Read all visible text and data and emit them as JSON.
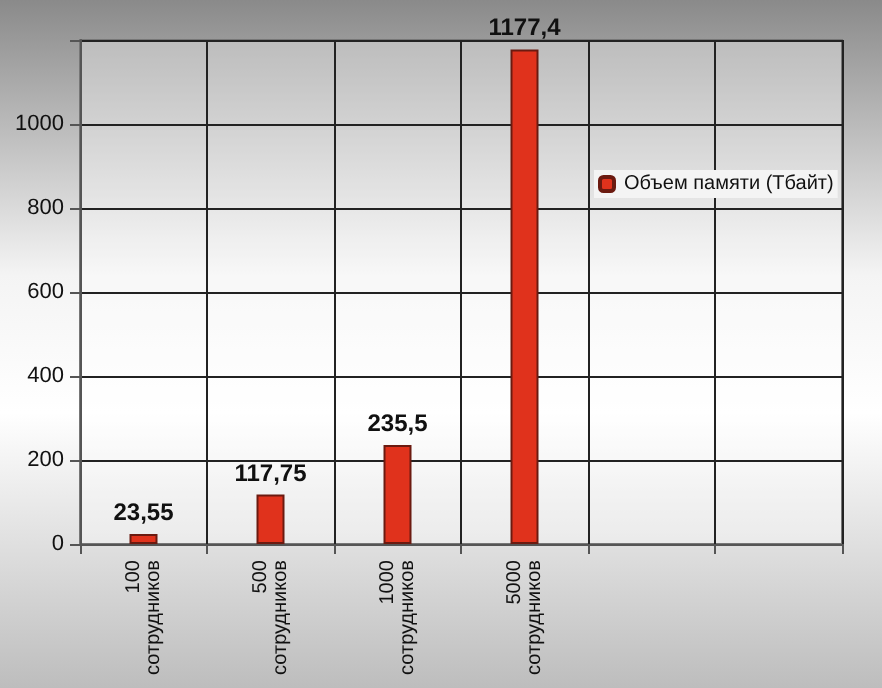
{
  "chart_data": {
    "type": "bar",
    "categories": [
      "100 сотрудников",
      "500 сотрудников",
      "1000 сотрудников",
      "5000 сотрудников",
      null,
      null
    ],
    "series": [
      {
        "name": "Объем памяти (Тбайт)",
        "color": "#e0321c",
        "values": [
          23.55,
          117.75,
          235.5,
          1177.4,
          null,
          null
        ],
        "value_labels": [
          "23,55",
          "117,75",
          "235,5",
          "1177,4",
          null,
          null
        ]
      }
    ],
    "ylim": [
      0,
      1200
    ],
    "yticks": [
      0,
      200,
      400,
      600,
      800,
      1000,
      {
        "value": 1200,
        "label": null
      }
    ],
    "grid": true,
    "legend": "right"
  }
}
